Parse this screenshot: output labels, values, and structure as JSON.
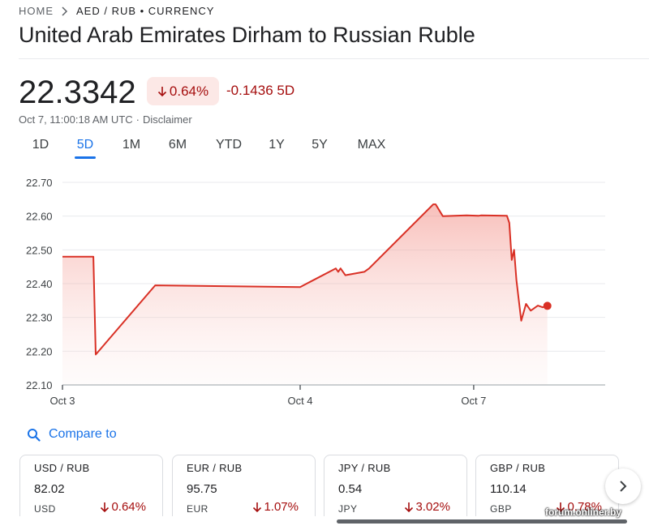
{
  "breadcrumb": {
    "home": "HOME",
    "current": "AED / RUB • CURRENCY"
  },
  "title": "United Arab Emirates Dirham to Russian Ruble",
  "quote": {
    "price": "22.3342",
    "change_pct": "0.64%",
    "change_abs": "-0.1436",
    "period": "5D",
    "timestamp": "Oct 7, 11:00:18 AM UTC",
    "separator": "·",
    "disclaimer": "Disclaimer"
  },
  "range_tabs": [
    "1D",
    "5D",
    "1M",
    "6M",
    "YTD",
    "1Y",
    "5Y",
    "MAX"
  ],
  "active_tab": "5D",
  "colors": {
    "negative": "#a50e0e",
    "line": "#d93025",
    "accent": "#1a73e8"
  },
  "chart_data": {
    "type": "area",
    "title": "",
    "xlabel": "",
    "ylabel": "",
    "ylim": [
      22.1,
      22.7
    ],
    "yticks": [
      "22.70",
      "22.60",
      "22.50",
      "22.40",
      "22.30",
      "22.20",
      "22.10"
    ],
    "xticks": [
      {
        "label": "Oct 3",
        "x": 0
      },
      {
        "label": "Oct 4",
        "x": 1
      },
      {
        "label": "Oct 7",
        "x": 1.73
      }
    ],
    "grid": true,
    "series": [
      {
        "x": [
          0,
          0.13,
          0.14,
          0.39,
          1.0,
          1.15,
          1.16,
          1.17,
          1.19,
          1.27,
          1.29,
          1.56,
          1.57,
          1.6,
          1.7,
          1.75,
          1.76,
          1.87,
          1.88,
          1.89,
          1.9,
          1.91,
          1.93,
          1.95,
          1.97,
          1.98,
          2.0,
          2.02,
          2.04
        ],
        "y": [
          22.48,
          22.48,
          22.19,
          22.395,
          22.39,
          22.445,
          22.435,
          22.445,
          22.425,
          22.435,
          22.445,
          22.635,
          22.635,
          22.6,
          22.602,
          22.601,
          22.602,
          22.601,
          22.58,
          22.47,
          22.5,
          22.41,
          22.29,
          22.34,
          22.32,
          22.325,
          22.335,
          22.33,
          22.335
        ]
      }
    ],
    "last_point": {
      "x": 2.04,
      "y": 22.3342
    }
  },
  "compare": {
    "label": "Compare to"
  },
  "cards": [
    {
      "pair": "USD / RUB",
      "value": "82.02",
      "base": "USD",
      "change": "0.64%"
    },
    {
      "pair": "EUR / RUB",
      "value": "95.75",
      "base": "EUR",
      "change": "1.07%"
    },
    {
      "pair": "JPY / RUB",
      "value": "0.54",
      "base": "JPY",
      "change": "3.02%"
    },
    {
      "pair": "GBP / RUB",
      "value": "110.14",
      "base": "GBP",
      "change": "0.78%"
    }
  ],
  "watermark": "forum.onliner.by"
}
